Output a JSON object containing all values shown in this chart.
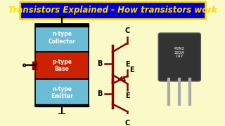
{
  "background_color": "#FAFAC8",
  "title": "Transistors Explained - How transistors work",
  "title_color": "#FFD700",
  "title_bg": "#0000CC",
  "title_border": "#FFD700",
  "npn_layers": [
    {
      "label": "n-type\nCollector",
      "color": "#6BBCD4"
    },
    {
      "label": "p-type\nBase",
      "color": "#CC2200"
    },
    {
      "label": "n-type\nEmitter",
      "color": "#6BBCD4"
    }
  ],
  "layer_border": "#000000",
  "wire_color": "#000000",
  "symbol_color": "#880000",
  "label_color": "#000000",
  "transistor_photo_placeholder": true
}
